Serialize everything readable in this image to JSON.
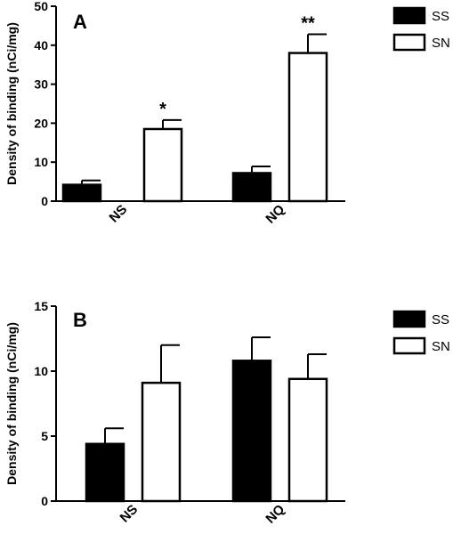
{
  "chart_data": [
    {
      "type": "bar",
      "panel_label": "A",
      "ylabel": "Density of binding (nCi/mg)",
      "ylim": [
        0,
        50
      ],
      "yticks": [
        0,
        10,
        20,
        30,
        40,
        50
      ],
      "categories": [
        "NS",
        "NQ"
      ],
      "series": [
        {
          "name": "SS",
          "fill": "#000000",
          "values": [
            4.2,
            7.2
          ],
          "errors": [
            1.1,
            1.7
          ]
        },
        {
          "name": "SN",
          "fill": "#ffffff",
          "values": [
            18.5,
            38.0
          ],
          "errors": [
            2.3,
            4.8
          ]
        }
      ],
      "annotations": [
        {
          "category_index": 0,
          "series_index": 1,
          "text": "*"
        },
        {
          "category_index": 1,
          "series_index": 1,
          "text": "**"
        }
      ],
      "legend_position": "top-right"
    },
    {
      "type": "bar",
      "panel_label": "B",
      "ylabel": "Density of binding (nCi/mg)",
      "ylim": [
        0,
        15
      ],
      "yticks": [
        0,
        5,
        10,
        15
      ],
      "categories": [
        "NS",
        "NQ"
      ],
      "series": [
        {
          "name": "SS",
          "fill": "#000000",
          "values": [
            4.4,
            10.8
          ],
          "errors": [
            1.2,
            1.8
          ]
        },
        {
          "name": "SN",
          "fill": "#ffffff",
          "values": [
            9.1,
            9.4
          ],
          "errors": [
            2.9,
            1.9
          ]
        }
      ],
      "annotations": [],
      "legend_position": "top-right"
    }
  ]
}
